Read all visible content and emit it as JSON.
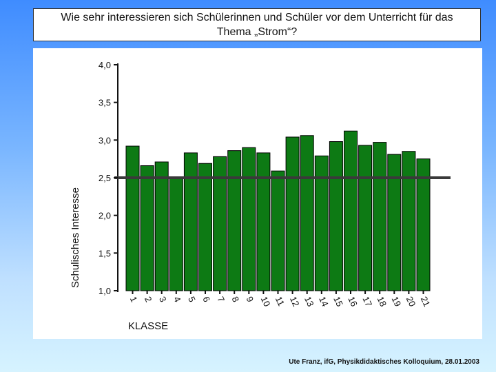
{
  "slide": {
    "title_line1": "Wie sehr interessieren sich Schülerinnen und Schüler  vor dem Unterricht für das",
    "title_line2": "Thema „Strom“?",
    "footer": "Ute Franz, ifG, Physikdidaktisches Kolloquium, 28.01.2003"
  },
  "colors": {
    "bar": "#0d7a14",
    "bar_edge": "#000000",
    "reference_line": "#3a3a3a"
  },
  "chart_data": {
    "type": "bar",
    "title": "",
    "xlabel": "KLASSE",
    "ylabel": "Schulisches Interesse",
    "categories": [
      "1",
      "2",
      "3",
      "4",
      "5",
      "6",
      "7",
      "8",
      "9",
      "10",
      "11",
      "12",
      "13",
      "14",
      "15",
      "16",
      "17",
      "18",
      "19",
      "20",
      "21"
    ],
    "values": [
      2.92,
      2.66,
      2.71,
      2.51,
      2.83,
      2.69,
      2.78,
      2.86,
      2.9,
      2.83,
      2.59,
      3.04,
      3.06,
      2.79,
      2.98,
      3.12,
      2.93,
      2.97,
      2.81,
      2.85,
      2.75
    ],
    "ylim": [
      1.0,
      4.0
    ],
    "yticks": [
      "1,0",
      "1,5",
      "2,0",
      "2,5",
      "3,0",
      "3,5",
      "4,0"
    ],
    "ytick_values": [
      1.0,
      1.5,
      2.0,
      2.5,
      3.0,
      3.5,
      4.0
    ],
    "reference_line": 2.5
  }
}
